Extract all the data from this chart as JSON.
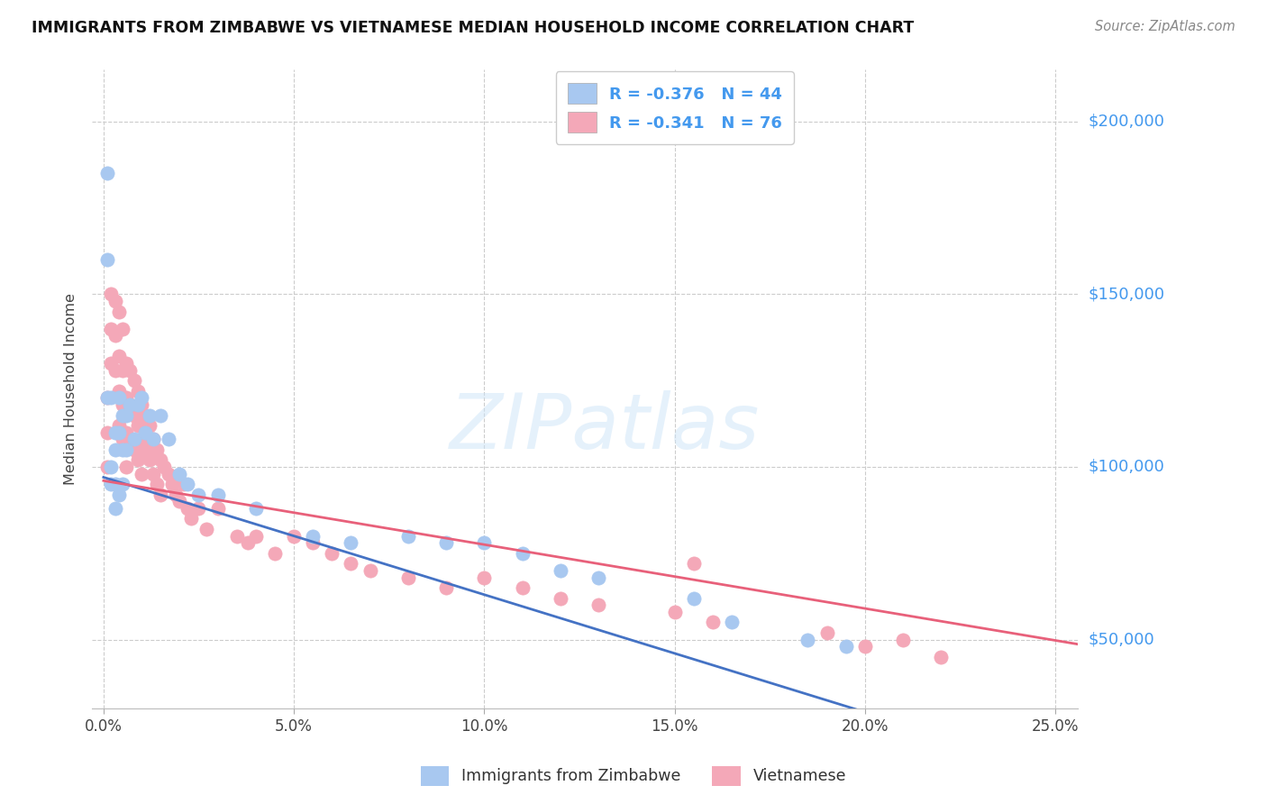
{
  "title": "IMMIGRANTS FROM ZIMBABWE VS VIETNAMESE MEDIAN HOUSEHOLD INCOME CORRELATION CHART",
  "source": "Source: ZipAtlas.com",
  "xlabel_ticks": [
    "0.0%",
    "5.0%",
    "10.0%",
    "15.0%",
    "20.0%",
    "25.0%"
  ],
  "xlabel_vals": [
    0.0,
    0.05,
    0.1,
    0.15,
    0.2,
    0.25
  ],
  "ylabel": "Median Household Income",
  "ylabel_ticks": [
    50000,
    100000,
    150000,
    200000
  ],
  "ylabel_labels": [
    "$50,000",
    "$100,000",
    "$150,000",
    "$200,000"
  ],
  "xlim": [
    -0.003,
    0.256
  ],
  "ylim": [
    30000,
    215000
  ],
  "zimbabwe_color": "#a8c8f0",
  "vietnamese_color": "#f4a8b8",
  "zimbabwe_line_color": "#4472C4",
  "vietnamese_line_color": "#E8607A",
  "zimbabwe_R": -0.376,
  "zimbabwe_N": 44,
  "vietnamese_R": -0.341,
  "vietnamese_N": 76,
  "legend_label_1": "Immigrants from Zimbabwe",
  "legend_label_2": "Vietnamese",
  "watermark": "ZIPatlas",
  "ytick_color": "#4499ee",
  "title_color": "#111111",
  "source_color": "#888888",
  "zimbabwe_x": [
    0.001,
    0.001,
    0.001,
    0.002,
    0.002,
    0.002,
    0.003,
    0.003,
    0.003,
    0.003,
    0.004,
    0.004,
    0.004,
    0.005,
    0.005,
    0.005,
    0.006,
    0.006,
    0.007,
    0.008,
    0.009,
    0.01,
    0.011,
    0.012,
    0.013,
    0.015,
    0.017,
    0.02,
    0.022,
    0.025,
    0.03,
    0.04,
    0.055,
    0.065,
    0.08,
    0.09,
    0.1,
    0.11,
    0.12,
    0.13,
    0.155,
    0.165,
    0.185,
    0.195
  ],
  "zimbabwe_y": [
    185000,
    160000,
    120000,
    120000,
    100000,
    95000,
    110000,
    105000,
    95000,
    88000,
    120000,
    110000,
    92000,
    115000,
    105000,
    95000,
    115000,
    105000,
    118000,
    108000,
    118000,
    120000,
    110000,
    115000,
    108000,
    115000,
    108000,
    98000,
    95000,
    92000,
    92000,
    88000,
    80000,
    78000,
    80000,
    78000,
    78000,
    75000,
    70000,
    68000,
    62000,
    55000,
    50000,
    48000
  ],
  "zimbabwe_size": [
    60,
    60,
    60,
    80,
    80,
    80,
    100,
    100,
    100,
    100,
    120,
    120,
    120,
    140,
    140,
    140,
    100,
    100,
    100,
    100,
    100,
    100,
    100,
    100,
    100,
    100,
    100,
    100,
    100,
    100,
    100,
    100,
    100,
    100,
    100,
    100,
    100,
    100,
    100,
    100,
    100,
    100,
    100,
    100
  ],
  "vietnamese_x": [
    0.001,
    0.001,
    0.001,
    0.002,
    0.002,
    0.002,
    0.003,
    0.003,
    0.003,
    0.004,
    0.004,
    0.004,
    0.004,
    0.005,
    0.005,
    0.005,
    0.005,
    0.006,
    0.006,
    0.006,
    0.006,
    0.007,
    0.007,
    0.007,
    0.008,
    0.008,
    0.008,
    0.009,
    0.009,
    0.009,
    0.01,
    0.01,
    0.01,
    0.011,
    0.011,
    0.012,
    0.012,
    0.013,
    0.013,
    0.014,
    0.014,
    0.015,
    0.015,
    0.016,
    0.017,
    0.018,
    0.019,
    0.02,
    0.021,
    0.022,
    0.023,
    0.025,
    0.027,
    0.03,
    0.035,
    0.038,
    0.04,
    0.045,
    0.05,
    0.055,
    0.06,
    0.065,
    0.07,
    0.08,
    0.09,
    0.1,
    0.11,
    0.12,
    0.13,
    0.15,
    0.155,
    0.16,
    0.19,
    0.2,
    0.21,
    0.22
  ],
  "vietnamese_y": [
    120000,
    110000,
    100000,
    150000,
    140000,
    130000,
    148000,
    138000,
    128000,
    145000,
    132000,
    122000,
    112000,
    140000,
    128000,
    118000,
    108000,
    130000,
    120000,
    110000,
    100000,
    128000,
    118000,
    108000,
    125000,
    115000,
    105000,
    122000,
    112000,
    102000,
    118000,
    108000,
    98000,
    115000,
    105000,
    112000,
    102000,
    108000,
    98000,
    105000,
    95000,
    102000,
    92000,
    100000,
    98000,
    95000,
    92000,
    90000,
    95000,
    88000,
    85000,
    88000,
    82000,
    88000,
    80000,
    78000,
    80000,
    75000,
    80000,
    78000,
    75000,
    72000,
    70000,
    68000,
    65000,
    68000,
    65000,
    62000,
    60000,
    58000,
    72000,
    55000,
    52000,
    48000,
    50000,
    45000
  ]
}
